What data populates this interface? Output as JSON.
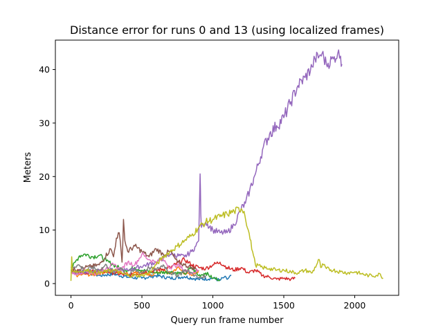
{
  "chart_data": {
    "type": "line",
    "title": "Distance error for runs 0 and 13 (using localized frames)",
    "xlabel": "Query run frame number",
    "ylabel": "Meters",
    "xlim": [
      -110,
      2310
    ],
    "ylim": [
      -2.2,
      45.5
    ],
    "xticks": [
      0,
      500,
      1000,
      1500,
      2000
    ],
    "yticks": [
      0,
      10,
      20,
      30,
      40
    ],
    "grid": false,
    "legend": "none",
    "series": [
      {
        "color": "#1f77b4",
        "x": [
          0,
          50,
          100,
          200,
          300,
          400,
          500,
          600,
          700,
          800,
          900,
          1000,
          1050,
          1080,
          1100,
          1130
        ],
        "y": [
          2.5,
          2.0,
          2.2,
          1.5,
          1.8,
          1.2,
          1.0,
          1.5,
          1.0,
          1.3,
          0.8,
          1.0,
          0.6,
          1.2,
          0.8,
          1.5
        ]
      },
      {
        "color": "#ff7f0e",
        "x": [
          0,
          50,
          100,
          150,
          200,
          300,
          400,
          450,
          500,
          550,
          600,
          650,
          700,
          750,
          800,
          850,
          900
        ],
        "y": [
          2.0,
          1.5,
          1.8,
          1.6,
          2.0,
          2.5,
          1.8,
          2.0,
          2.2,
          1.5,
          2.0,
          2.5,
          1.8,
          3.0,
          2.0,
          1.5,
          2.5
        ]
      },
      {
        "color": "#2ca02c",
        "x": [
          0,
          30,
          60,
          100,
          150,
          200,
          250,
          300,
          350,
          400,
          450,
          500,
          600,
          700,
          800,
          850,
          900,
          950,
          1000,
          1050
        ],
        "y": [
          2.5,
          4.0,
          5.2,
          5.5,
          5.0,
          5.3,
          4.2,
          3.5,
          2.8,
          2.5,
          3.0,
          2.5,
          2.0,
          2.2,
          1.8,
          3.0,
          1.5,
          2.0,
          1.0,
          0.8
        ]
      },
      {
        "color": "#d62728",
        "x": [
          0,
          100,
          200,
          300,
          400,
          500,
          600,
          700,
          800,
          850,
          900,
          950,
          1000,
          1050,
          1100,
          1150,
          1200,
          1250,
          1300,
          1350,
          1400,
          1450,
          1500,
          1550,
          1580
        ],
        "y": [
          2.5,
          2.0,
          2.5,
          2.0,
          1.5,
          2.0,
          2.5,
          3.0,
          4.5,
          3.5,
          3.0,
          2.8,
          3.5,
          4.0,
          3.0,
          2.5,
          3.0,
          2.0,
          2.5,
          1.5,
          1.2,
          0.8,
          1.0,
          0.8,
          1.0
        ]
      },
      {
        "color": "#9467bd",
        "x": [
          0,
          200,
          400,
          600,
          700,
          800,
          850,
          880,
          900,
          910,
          915,
          920,
          930,
          950,
          1000,
          1050,
          1100,
          1150,
          1200,
          1230,
          1260,
          1300,
          1350,
          1400,
          1450,
          1500,
          1550,
          1600,
          1650,
          1700,
          1720,
          1750,
          1770,
          1800,
          1850,
          1880,
          1900,
          1910
        ],
        "y": [
          2.0,
          2.5,
          2.5,
          4.0,
          5.5,
          5.0,
          6.0,
          7.0,
          8.0,
          20.5,
          13.0,
          10.5,
          11.0,
          11.5,
          10.0,
          9.5,
          9.5,
          11.0,
          14.0,
          15.0,
          17.5,
          20.5,
          25.0,
          28.0,
          29.5,
          31.0,
          34.0,
          37.0,
          38.5,
          40.5,
          42.0,
          42.5,
          43.0,
          41.0,
          42.0,
          43.0,
          42.5,
          41.0
        ]
      },
      {
        "color": "#8c564b",
        "x": [
          0,
          100,
          200,
          280,
          300,
          320,
          340,
          360,
          370,
          380,
          400,
          450,
          500,
          550,
          600,
          650,
          700,
          750,
          800,
          850,
          900
        ],
        "y": [
          2.5,
          3.0,
          3.5,
          6.5,
          5.0,
          8.5,
          9.5,
          4.0,
          12.0,
          8.0,
          6.0,
          7.0,
          6.0,
          5.0,
          6.5,
          5.5,
          6.0,
          4.0,
          3.5,
          3.0,
          2.5
        ]
      },
      {
        "color": "#e377c2",
        "x": [
          0,
          50,
          100,
          150,
          200,
          250,
          300,
          350,
          400,
          450,
          500,
          550,
          600,
          650,
          700,
          750,
          800,
          850,
          900
        ],
        "y": [
          2.0,
          1.8,
          2.5,
          1.8,
          2.0,
          3.0,
          3.5,
          2.5,
          4.0,
          3.5,
          5.5,
          4.5,
          4.0,
          4.5,
          3.0,
          3.5,
          2.5,
          2.0,
          2.5
        ]
      },
      {
        "color": "#7f7f7f",
        "x": [
          0,
          50,
          100,
          150,
          200,
          250,
          300,
          350,
          400,
          450,
          500,
          550,
          600,
          650,
          700,
          750,
          800,
          850,
          900,
          950
        ],
        "y": [
          3.0,
          3.5,
          2.5,
          3.0,
          2.5,
          3.5,
          2.0,
          3.0,
          1.5,
          2.5,
          2.0,
          3.0,
          2.5,
          3.5,
          2.0,
          1.5,
          2.5,
          2.0,
          1.0,
          1.5
        ]
      },
      {
        "color": "#bcbd22",
        "x": [
          0,
          5,
          10,
          50,
          100,
          200,
          300,
          400,
          500,
          550,
          600,
          650,
          700,
          750,
          800,
          850,
          900,
          950,
          1000,
          1050,
          1100,
          1150,
          1200,
          1220,
          1250,
          1280,
          1300,
          1350,
          1400,
          1450,
          1500,
          1550,
          1600,
          1650,
          1700,
          1750,
          1760,
          1780,
          1800,
          1850,
          1900,
          1950,
          2000,
          2050,
          2100,
          2150,
          2180,
          2200
        ],
        "y": [
          0.5,
          5.0,
          2.5,
          2.2,
          2.5,
          2.0,
          2.5,
          1.5,
          1.5,
          2.0,
          3.5,
          5.0,
          6.0,
          7.0,
          8.0,
          9.0,
          10.5,
          11.5,
          12.0,
          12.5,
          13.0,
          13.5,
          14.0,
          13.5,
          10.0,
          6.0,
          3.5,
          3.0,
          2.8,
          2.5,
          2.5,
          2.2,
          2.0,
          2.5,
          2.0,
          4.5,
          3.0,
          3.5,
          2.8,
          2.5,
          2.2,
          2.0,
          2.2,
          1.8,
          1.5,
          1.5,
          1.8,
          1.0
        ]
      }
    ]
  }
}
